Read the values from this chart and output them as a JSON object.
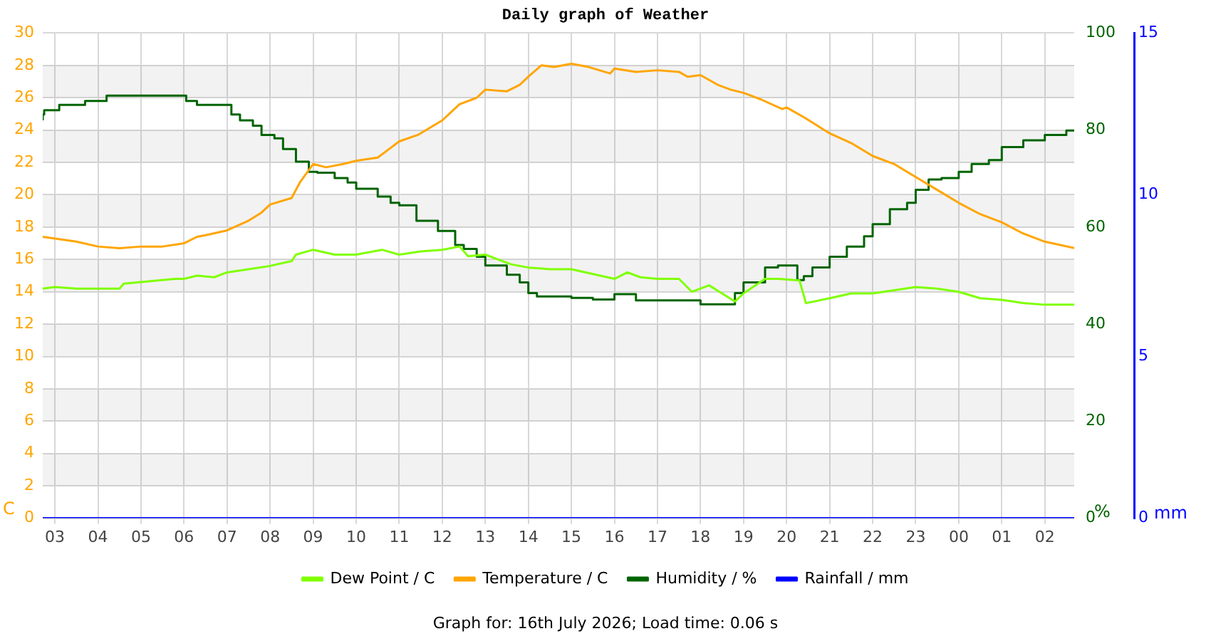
{
  "chart_data": {
    "type": "line",
    "title": "Daily graph of Weather",
    "ylabel": "C",
    "y2label": "%",
    "y3label": "mm",
    "annotations": [
      "Graph for: 16th July 2026; Load time: 0.06 s"
    ],
    "xlim": [
      "2026-07-15T02:43",
      "2026-07-16T02:41"
    ],
    "xticks": [
      {
        "value": "2026-07-15T03:00",
        "label": "03"
      },
      {
        "value": "2026-07-15T04:00",
        "label": "04"
      },
      {
        "value": "2026-07-15T05:00",
        "label": "05"
      },
      {
        "value": "2026-07-15T06:00",
        "label": "06"
      },
      {
        "value": "2026-07-15T07:00",
        "label": "07"
      },
      {
        "value": "2026-07-15T08:00",
        "label": "08"
      },
      {
        "value": "2026-07-15T09:00",
        "label": "09"
      },
      {
        "value": "2026-07-15T10:00",
        "label": "10"
      },
      {
        "value": "2026-07-15T11:00",
        "label": "11"
      },
      {
        "value": "2026-07-15T12:00",
        "label": "12"
      },
      {
        "value": "2026-07-15T13:00",
        "label": "13"
      },
      {
        "value": "2026-07-15T14:00",
        "label": "14"
      },
      {
        "value": "2026-07-15T15:00",
        "label": "15"
      },
      {
        "value": "2026-07-15T16:00",
        "label": "16"
      },
      {
        "value": "2026-07-15T17:00",
        "label": "17"
      },
      {
        "value": "2026-07-15T18:00",
        "label": "18"
      },
      {
        "value": "2026-07-15T19:00",
        "label": "19"
      },
      {
        "value": "2026-07-15T20:00",
        "label": "20"
      },
      {
        "value": "2026-07-15T21:00",
        "label": "21"
      },
      {
        "value": "2026-07-15T22:00",
        "label": "22"
      },
      {
        "value": "2026-07-15T23:00",
        "label": "23"
      },
      {
        "value": "2026-07-16T00:00",
        "label": "00"
      },
      {
        "value": "2026-07-16T01:00",
        "label": "01"
      },
      {
        "value": "2026-07-16T02:00",
        "label": "02"
      }
    ],
    "ylim": [
      0,
      30
    ],
    "yticks": [
      0,
      2,
      4,
      6,
      8,
      10,
      12,
      14,
      16,
      18,
      20,
      22,
      24,
      26,
      28,
      30
    ],
    "y2lim": [
      0,
      100
    ],
    "y2ticks": [
      0,
      20,
      40,
      60,
      80,
      100
    ],
    "y3lim": [
      0,
      15
    ],
    "y3ticks": [
      0,
      5,
      10,
      15
    ],
    "grid": true,
    "legend": "bottom",
    "marker": "none",
    "series": [
      {
        "name": "Dew Point / C",
        "color": "#80ff00",
        "x": [
          "2026-07-15T02:43",
          "2026-07-15T03:00",
          "2026-07-15T03:30",
          "2026-07-15T04:00",
          "2026-07-15T04:30",
          "2026-07-15T04:36",
          "2026-07-15T05:00",
          "2026-07-15T05:48",
          "2026-07-15T06:00",
          "2026-07-15T06:18",
          "2026-07-15T06:42",
          "2026-07-15T07:00",
          "2026-07-15T07:30",
          "2026-07-15T08:00",
          "2026-07-15T08:30",
          "2026-07-15T08:36",
          "2026-07-15T09:00",
          "2026-07-15T09:30",
          "2026-07-15T10:00",
          "2026-07-15T10:36",
          "2026-07-15T11:00",
          "2026-07-15T11:30",
          "2026-07-15T12:00",
          "2026-07-15T12:24",
          "2026-07-15T12:36",
          "2026-07-15T13:00",
          "2026-07-15T13:18",
          "2026-07-15T13:36",
          "2026-07-15T14:00",
          "2026-07-15T14:30",
          "2026-07-15T15:00",
          "2026-07-15T15:30",
          "2026-07-15T16:00",
          "2026-07-15T16:18",
          "2026-07-15T16:36",
          "2026-07-15T17:00",
          "2026-07-15T17:30",
          "2026-07-15T17:48",
          "2026-07-15T18:12",
          "2026-07-15T18:30",
          "2026-07-15T18:48",
          "2026-07-15T19:00",
          "2026-07-15T19:30",
          "2026-07-15T19:48",
          "2026-07-15T20:18",
          "2026-07-15T20:27",
          "2026-07-15T21:00",
          "2026-07-15T21:30",
          "2026-07-15T22:00",
          "2026-07-15T22:30",
          "2026-07-15T23:00",
          "2026-07-15T23:30",
          "2026-07-16T00:00",
          "2026-07-16T00:30",
          "2026-07-16T01:00",
          "2026-07-16T01:30",
          "2026-07-16T02:00",
          "2026-07-16T02:41"
        ],
        "values": [
          14.2,
          14.3,
          14.2,
          14.2,
          14.2,
          14.5,
          14.6,
          14.8,
          14.8,
          15.0,
          14.9,
          15.2,
          15.4,
          15.6,
          15.9,
          16.3,
          16.6,
          16.3,
          16.3,
          16.6,
          16.3,
          16.5,
          16.6,
          16.8,
          16.2,
          16.3,
          16.0,
          15.7,
          15.5,
          15.4,
          15.4,
          15.1,
          14.8,
          15.2,
          14.9,
          14.8,
          14.8,
          14.0,
          14.4,
          13.9,
          13.4,
          13.9,
          14.8,
          14.8,
          14.7,
          13.3,
          13.6,
          13.9,
          13.9,
          14.1,
          14.3,
          14.2,
          14.0,
          13.6,
          13.5,
          13.3,
          13.2,
          13.2
        ]
      },
      {
        "name": "Temperature / C",
        "color": "#ffa500",
        "x": [
          "2026-07-15T02:43",
          "2026-07-15T03:30",
          "2026-07-15T04:00",
          "2026-07-15T04:30",
          "2026-07-15T05:00",
          "2026-07-15T05:30",
          "2026-07-15T06:00",
          "2026-07-15T06:18",
          "2026-07-15T06:30",
          "2026-07-15T07:00",
          "2026-07-15T07:30",
          "2026-07-15T07:48",
          "2026-07-15T08:00",
          "2026-07-15T08:30",
          "2026-07-15T08:42",
          "2026-07-15T09:00",
          "2026-07-15T09:18",
          "2026-07-15T09:42",
          "2026-07-15T10:00",
          "2026-07-15T10:30",
          "2026-07-15T10:48",
          "2026-07-15T11:00",
          "2026-07-15T11:26",
          "2026-07-15T12:00",
          "2026-07-15T12:24",
          "2026-07-15T12:48",
          "2026-07-15T13:00",
          "2026-07-15T13:30",
          "2026-07-15T13:48",
          "2026-07-15T14:00",
          "2026-07-15T14:18",
          "2026-07-15T14:36",
          "2026-07-15T15:00",
          "2026-07-15T15:24",
          "2026-07-15T15:54",
          "2026-07-15T16:00",
          "2026-07-15T16:30",
          "2026-07-15T17:00",
          "2026-07-15T17:30",
          "2026-07-15T17:42",
          "2026-07-15T18:00",
          "2026-07-15T18:24",
          "2026-07-15T18:42",
          "2026-07-15T19:00",
          "2026-07-15T19:24",
          "2026-07-15T19:54",
          "2026-07-15T20:00",
          "2026-07-15T20:24",
          "2026-07-15T21:00",
          "2026-07-15T21:30",
          "2026-07-15T22:00",
          "2026-07-15T22:30",
          "2026-07-15T23:00",
          "2026-07-15T23:30",
          "2026-07-16T00:00",
          "2026-07-16T00:30",
          "2026-07-16T01:00",
          "2026-07-16T01:30",
          "2026-07-16T02:00",
          "2026-07-16T02:41"
        ],
        "values": [
          17.4,
          17.1,
          16.8,
          16.7,
          16.8,
          16.8,
          17.0,
          17.4,
          17.5,
          17.8,
          18.4,
          18.9,
          19.4,
          19.8,
          20.8,
          21.9,
          21.7,
          21.9,
          22.1,
          22.3,
          22.9,
          23.3,
          23.7,
          24.6,
          25.6,
          26.0,
          26.5,
          26.4,
          26.8,
          27.3,
          28.0,
          27.9,
          28.1,
          27.9,
          27.5,
          27.8,
          27.6,
          27.7,
          27.6,
          27.3,
          27.4,
          26.8,
          26.5,
          26.3,
          25.9,
          25.3,
          25.4,
          24.8,
          23.8,
          23.2,
          22.4,
          21.9,
          21.1,
          20.3,
          19.5,
          18.8,
          18.3,
          17.6,
          17.1,
          16.7
        ]
      },
      {
        "name": "Humidity / %",
        "type": "step",
        "axis": "y2",
        "color": "#006400",
        "x": [
          "2026-07-15T02:43",
          "2026-07-15T02:45",
          "2026-07-15T03:06",
          "2026-07-15T03:42",
          "2026-07-15T04:12",
          "2026-07-15T04:36",
          "2026-07-15T06:03",
          "2026-07-15T06:18",
          "2026-07-15T07:06",
          "2026-07-15T07:18",
          "2026-07-15T07:36",
          "2026-07-15T07:48",
          "2026-07-15T08:06",
          "2026-07-15T08:18",
          "2026-07-15T08:36",
          "2026-07-15T08:54",
          "2026-07-15T09:06",
          "2026-07-15T09:30",
          "2026-07-15T09:48",
          "2026-07-15T10:00",
          "2026-07-15T10:30",
          "2026-07-15T10:48",
          "2026-07-15T11:00",
          "2026-07-15T11:24",
          "2026-07-15T11:54",
          "2026-07-15T12:18",
          "2026-07-15T12:30",
          "2026-07-15T12:48",
          "2026-07-15T13:00",
          "2026-07-15T13:30",
          "2026-07-15T13:48",
          "2026-07-15T14:00",
          "2026-07-15T14:12",
          "2026-07-15T15:00",
          "2026-07-15T15:30",
          "2026-07-15T16:00",
          "2026-07-15T16:30",
          "2026-07-15T17:00",
          "2026-07-15T18:00",
          "2026-07-15T18:30",
          "2026-07-15T18:48",
          "2026-07-15T19:00",
          "2026-07-15T19:30",
          "2026-07-15T19:48",
          "2026-07-15T20:15",
          "2026-07-15T20:24",
          "2026-07-15T20:36",
          "2026-07-15T21:00",
          "2026-07-15T21:24",
          "2026-07-15T21:48",
          "2026-07-15T22:00",
          "2026-07-15T22:24",
          "2026-07-15T22:48",
          "2026-07-15T23:00",
          "2026-07-15T23:18",
          "2026-07-15T23:36",
          "2026-07-16T00:00",
          "2026-07-16T00:18",
          "2026-07-16T00:42",
          "2026-07-16T01:00",
          "2026-07-16T01:30",
          "2026-07-16T02:00",
          "2026-07-16T02:30",
          "2026-07-16T02:41"
        ],
        "values": [
          82,
          83.2,
          84.1,
          85.2,
          86,
          87.1,
          87.1,
          86,
          85.2,
          83.2,
          82,
          80.9,
          79,
          78.3,
          76.1,
          73.5,
          71.4,
          71.2,
          70.1,
          69.2,
          67.9,
          66.3,
          65,
          64.5,
          61.3,
          59.2,
          56.3,
          55.5,
          53.9,
          52.1,
          50.2,
          48.6,
          46.4,
          45.7,
          45.4,
          45.1,
          46.2,
          44.9,
          44.9,
          44.1,
          44.1,
          46.4,
          48.6,
          51.7,
          52.1,
          49.1,
          49.9,
          51.7,
          53.9,
          56,
          58.1,
          60.6,
          63.7,
          65,
          67.7,
          69.8,
          70.1,
          71.4,
          73,
          73.8,
          76.5,
          77.9,
          79,
          79.9
        ]
      },
      {
        "name": "Rainfall / mm",
        "axis": "y3",
        "color": "#0000ff",
        "x": [
          "2026-07-15T02:43",
          "2026-07-16T02:41"
        ],
        "values": [
          0,
          0
        ]
      }
    ]
  }
}
